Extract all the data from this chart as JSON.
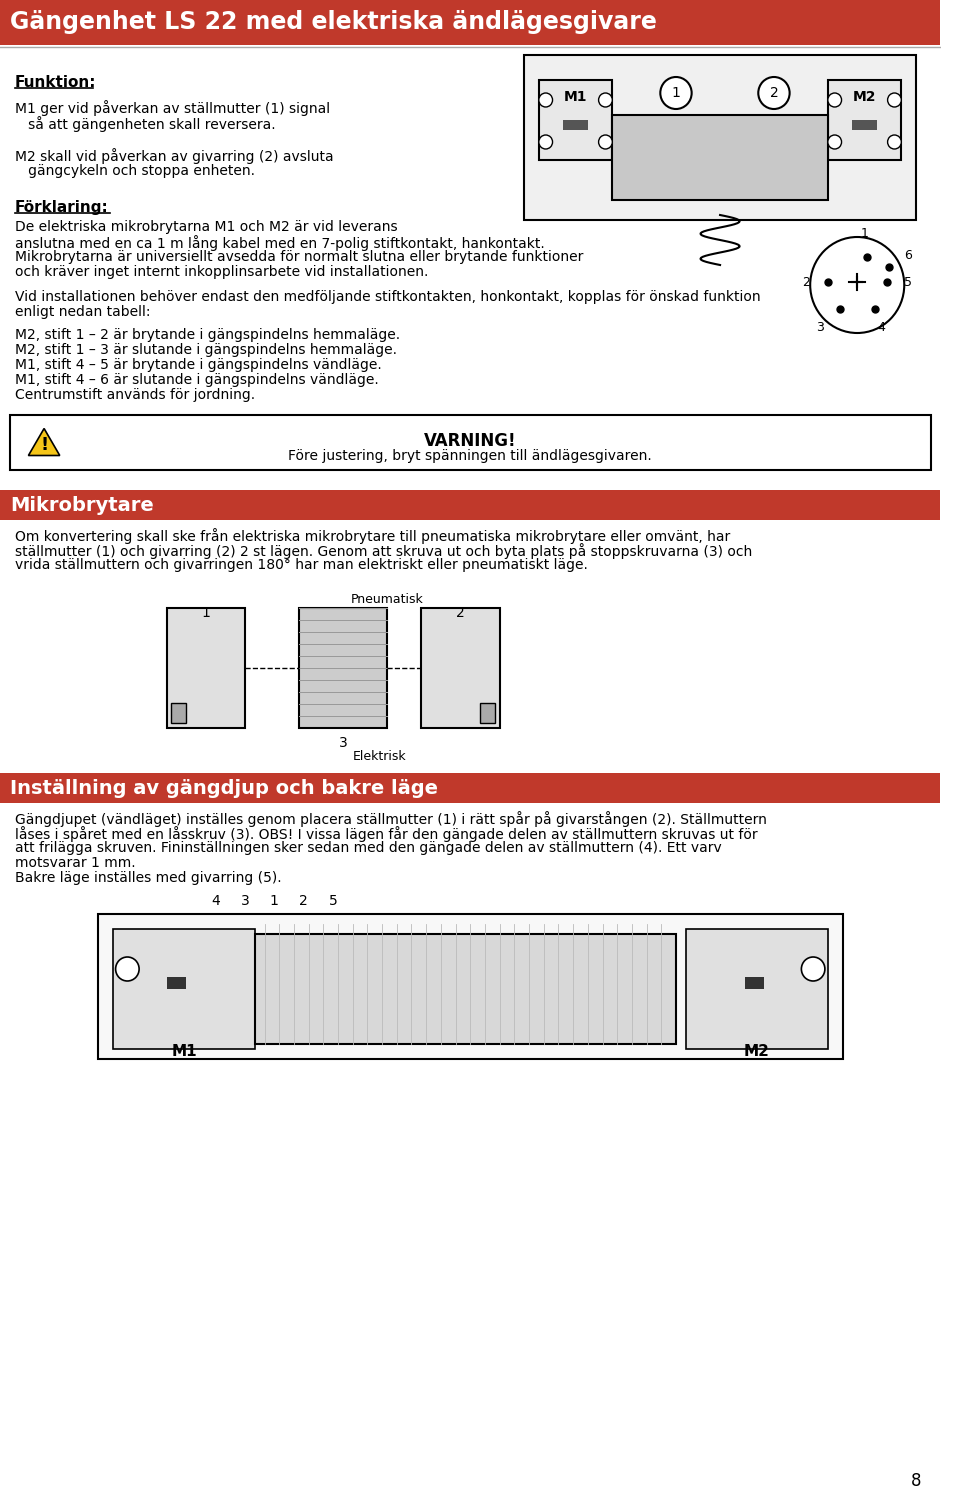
{
  "title": "Gängenhet LS 22 med elektriska ändlägesgivare",
  "title_bg": "#c0392b",
  "title_color": "#ffffff",
  "page_bg": "#ffffff",
  "section_bg": "#c0392b",
  "section_color": "#ffffff",
  "funktion_heading": "Funktion:",
  "funktion_text": [
    "M1 ger vid påverkan av ställmutter (1) signal",
    "   så att gängenheten skall reversera.",
    "",
    "M2 skall vid påverkan av givarring (2) avsluta",
    "   gängcykeln och stoppa enheten."
  ],
  "forklaring_heading": "Förklaring:",
  "forklaring_text": [
    "De elektriska mikrobrytarna M1 och M2 är vid leverans",
    "anslutna med en ca 1 m lång kabel med en 7-polig stiftkontakt, hankontakt.",
    "Mikrobrytarna är universiellt avsedda för normalt slutna eller brytande funktioner",
    "och kräver inget internt inkopplinsarbete vid installationen."
  ],
  "install_text": [
    "Vid installationen behöver endast den medföljande stiftkontakten, honkontakt, kopplas för önskad funktion",
    "enligt nedan tabell:"
  ],
  "list_items": [
    "M2, stift 1 – 2 är brytande i gängspindelns hemmaläge.",
    "M2, stift 1 – 3 är slutande i gängspindelns hemmaläge.",
    "M1, stift 4 – 5 är brytande i gängspindelns vändläge.",
    "M1, stift 4 – 6 är slutande i gängspindelns vändläge.",
    "Centrumstift används för jordning."
  ],
  "varning_heading": "VARNING!",
  "varning_text": "Före justering, bryt spänningen till ändlägesgivaren.",
  "mikrobrytare_heading": "Mikrobrytare",
  "mikrobrytare_text": [
    "Om konvertering skall ske från elektriska mikrobrytare till pneumatiska mikrobrytare eller omvänt, har",
    "ställmutter (1) och givarring (2) 2 st lägen. Genom att skruva ut och byta plats på stoppskruvarna (3) och",
    "vrida ställmuttern och givarringen 180° har man elektriskt eller pneumatiskt läge."
  ],
  "pneumatisk_label": "Pneumatisk",
  "elektrisk_label": "Elektrisk",
  "inställning_heading": "Inställning av gängdjup och bakre läge",
  "inställning_text": [
    "Gängdjupet (vändläget) inställes genom placera ställmutter (1) i rätt spår på givarstången (2). Ställmuttern",
    "låses i spåret med en låsskruv (3). OBS! I vissa lägen får den gängade delen av ställmuttern skruvas ut för",
    "att frilägga skruven. Fininställningen sker sedan med den gängade delen av ställmuttern (4). Ett varv",
    "motsvarar 1 mm.",
    "Bakre läge inställes med givarring (5)."
  ],
  "page_number": "8"
}
